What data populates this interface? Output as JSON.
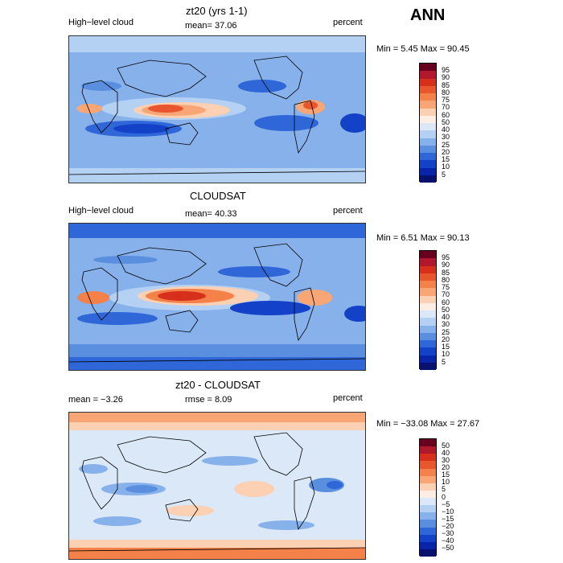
{
  "season": "ANN",
  "panels": [
    {
      "id": "model",
      "title": "zt20 (yrs 1-1)",
      "left_label": "High−level cloud",
      "center_label": "mean=  37.06",
      "right_label": "percent",
      "minmax": "Min =    5.45  Max =   90.45",
      "levels": [
        "95",
        "90",
        "85",
        "80",
        "75",
        "70",
        "60",
        "50",
        "40",
        "30",
        "25",
        "20",
        "15",
        "10",
        "5"
      ]
    },
    {
      "id": "obs",
      "title": "CLOUDSAT",
      "left_label": "High−level cloud",
      "center_label": "mean=  40.33",
      "right_label": "percent",
      "minmax": "Min =    6.51  Max =   90.13",
      "levels": [
        "95",
        "90",
        "85",
        "80",
        "75",
        "70",
        "60",
        "50",
        "40",
        "30",
        "25",
        "20",
        "15",
        "10",
        "5"
      ]
    },
    {
      "id": "diff",
      "title": "zt20 - CLOUDSAT",
      "left_label": "mean =   −3.26",
      "center_label": "rmse =    8.09",
      "right_label": "percent",
      "minmax": "Min = −33.08  Max =   27.67",
      "levels": [
        "50",
        "40",
        "30",
        "20",
        "15",
        "10",
        "5",
        "0",
        "−5",
        "−10",
        "−15",
        "−20",
        "−30",
        "−40",
        "−50"
      ]
    }
  ],
  "colors": {
    "scale": [
      "#67001f",
      "#b2182b",
      "#d6301c",
      "#e8562d",
      "#f4804a",
      "#f9a677",
      "#fcd0b2",
      "#fdeee4",
      "#dbe8f8",
      "#b4d0f2",
      "#87b1ea",
      "#5a8fe0",
      "#2f67d8",
      "#1342c9",
      "#0824a8",
      "#08126e"
    ]
  }
}
